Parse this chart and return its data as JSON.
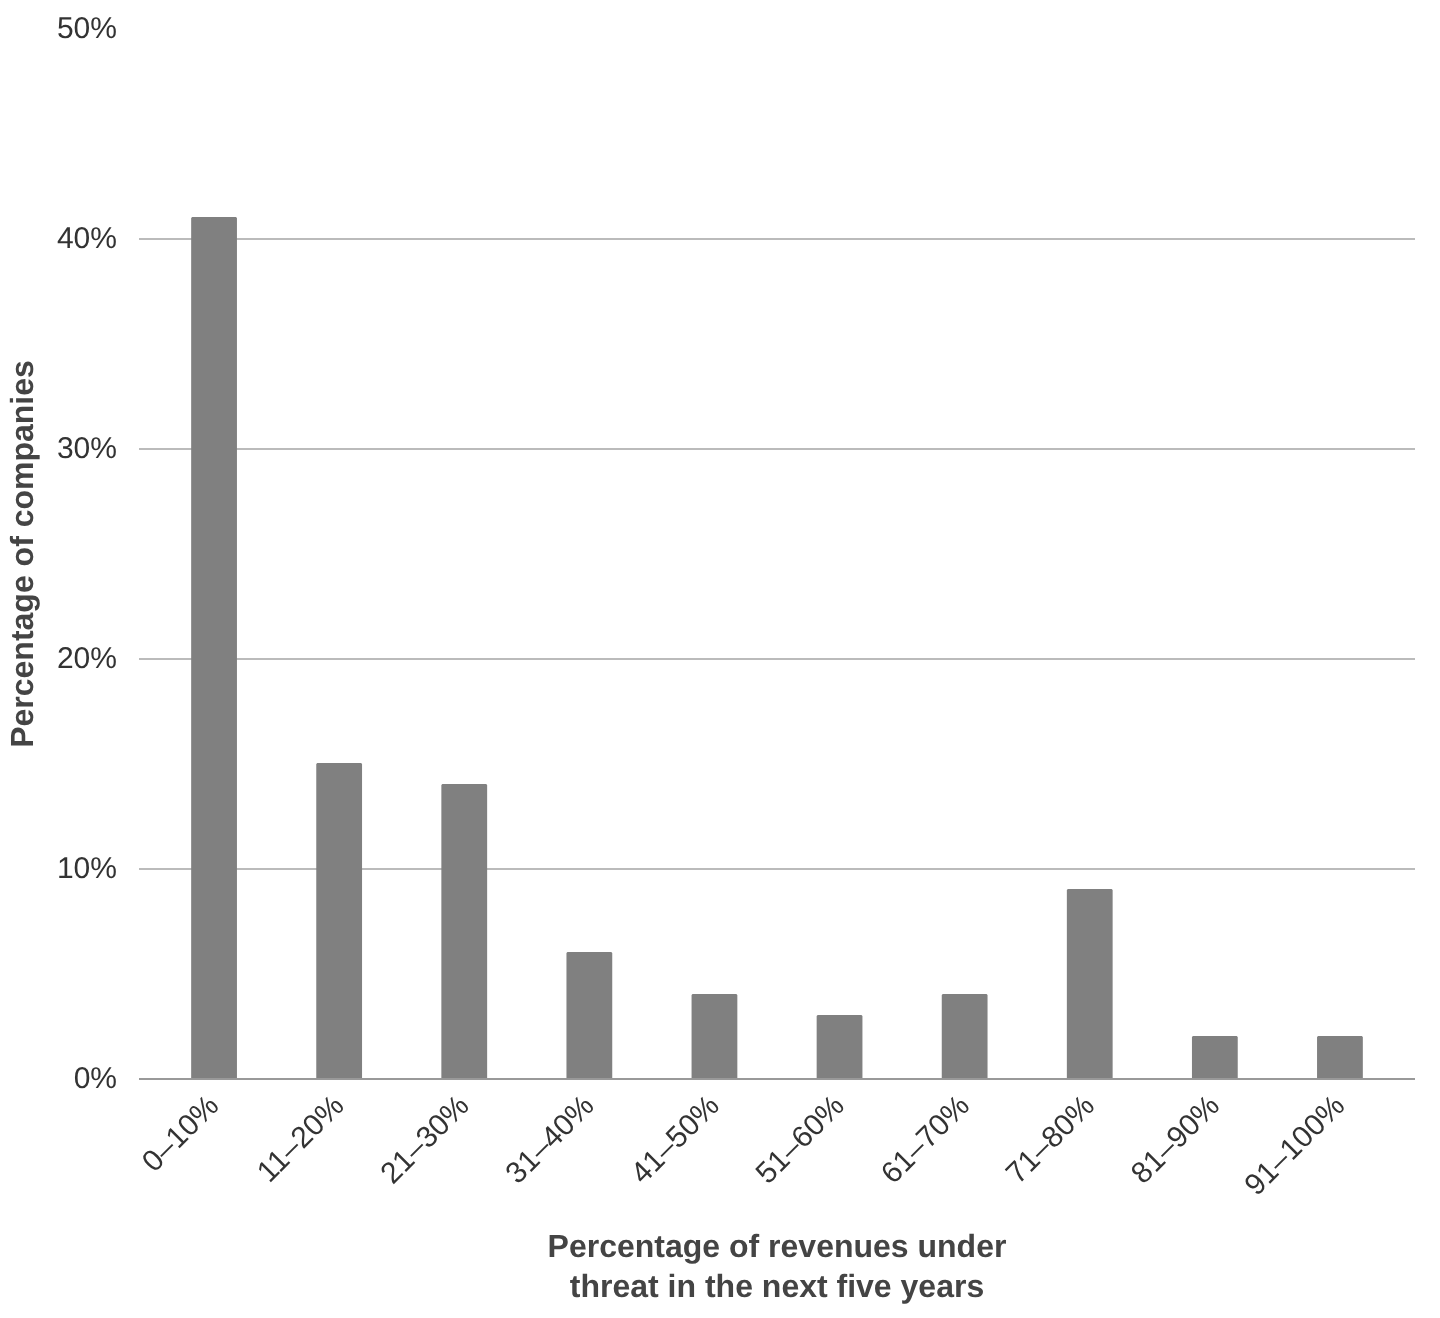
{
  "chart_data": {
    "type": "bar",
    "categories": [
      "0–10%",
      "11–20%",
      "21–30%",
      "31–40%",
      "41–50%",
      "51–60%",
      "61–70%",
      "71–80%",
      "81–90%",
      "91–100%"
    ],
    "values": [
      41,
      15,
      14,
      6,
      4,
      3,
      4,
      9,
      2,
      2
    ],
    "color": "#808080",
    "xlabel": "Percentage of revenues under threat in the next five years",
    "ylabel": "Percentage of companies",
    "ylim": [
      0,
      50
    ],
    "yticks": [
      {
        "value": 0,
        "label": "0%"
      },
      {
        "value": 10,
        "label": "10%"
      },
      {
        "value": 20,
        "label": "20%"
      },
      {
        "value": 30,
        "label": "30%"
      },
      {
        "value": 40,
        "label": "40%"
      },
      {
        "value": 50,
        "label": "50%"
      }
    ],
    "grid": "y"
  }
}
